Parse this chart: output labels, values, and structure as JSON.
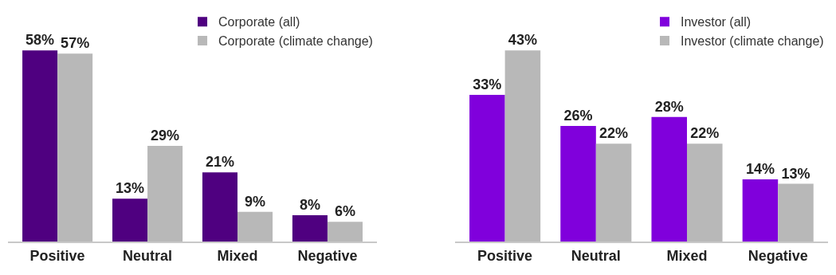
{
  "chart_data": [
    {
      "type": "bar",
      "categories": [
        "Positive",
        "Neutral",
        "Mixed",
        "Negative"
      ],
      "legend": "top right",
      "tick_labels": "x",
      "series": [
        {
          "name": "Corporate (all)",
          "color": "#4f0080",
          "values": [
            58,
            13,
            21,
            8
          ],
          "value_labels": [
            "58%",
            "13%",
            "21%",
            "8%"
          ]
        },
        {
          "name": "Corporate (climate change)",
          "color": "#b8b8b8",
          "values": [
            57,
            29,
            9,
            6
          ],
          "value_labels": [
            "57%",
            "29%",
            "9%",
            "6%"
          ]
        }
      ]
    },
    {
      "type": "bar",
      "categories": [
        "Positive",
        "Neutral",
        "Mixed",
        "Negative"
      ],
      "legend": "top right",
      "tick_labels": "x",
      "series": [
        {
          "name": "Investor (all)",
          "color": "#8000dc",
          "values": [
            33,
            26,
            28,
            14
          ],
          "value_labels": [
            "33%",
            "26%",
            "28%",
            "14%"
          ]
        },
        {
          "name": "Investor (climate change)",
          "color": "#b8b8b8",
          "values": [
            43,
            22,
            22,
            13
          ],
          "value_labels": [
            "43%",
            "22%",
            "22%",
            "13%"
          ]
        }
      ]
    }
  ]
}
